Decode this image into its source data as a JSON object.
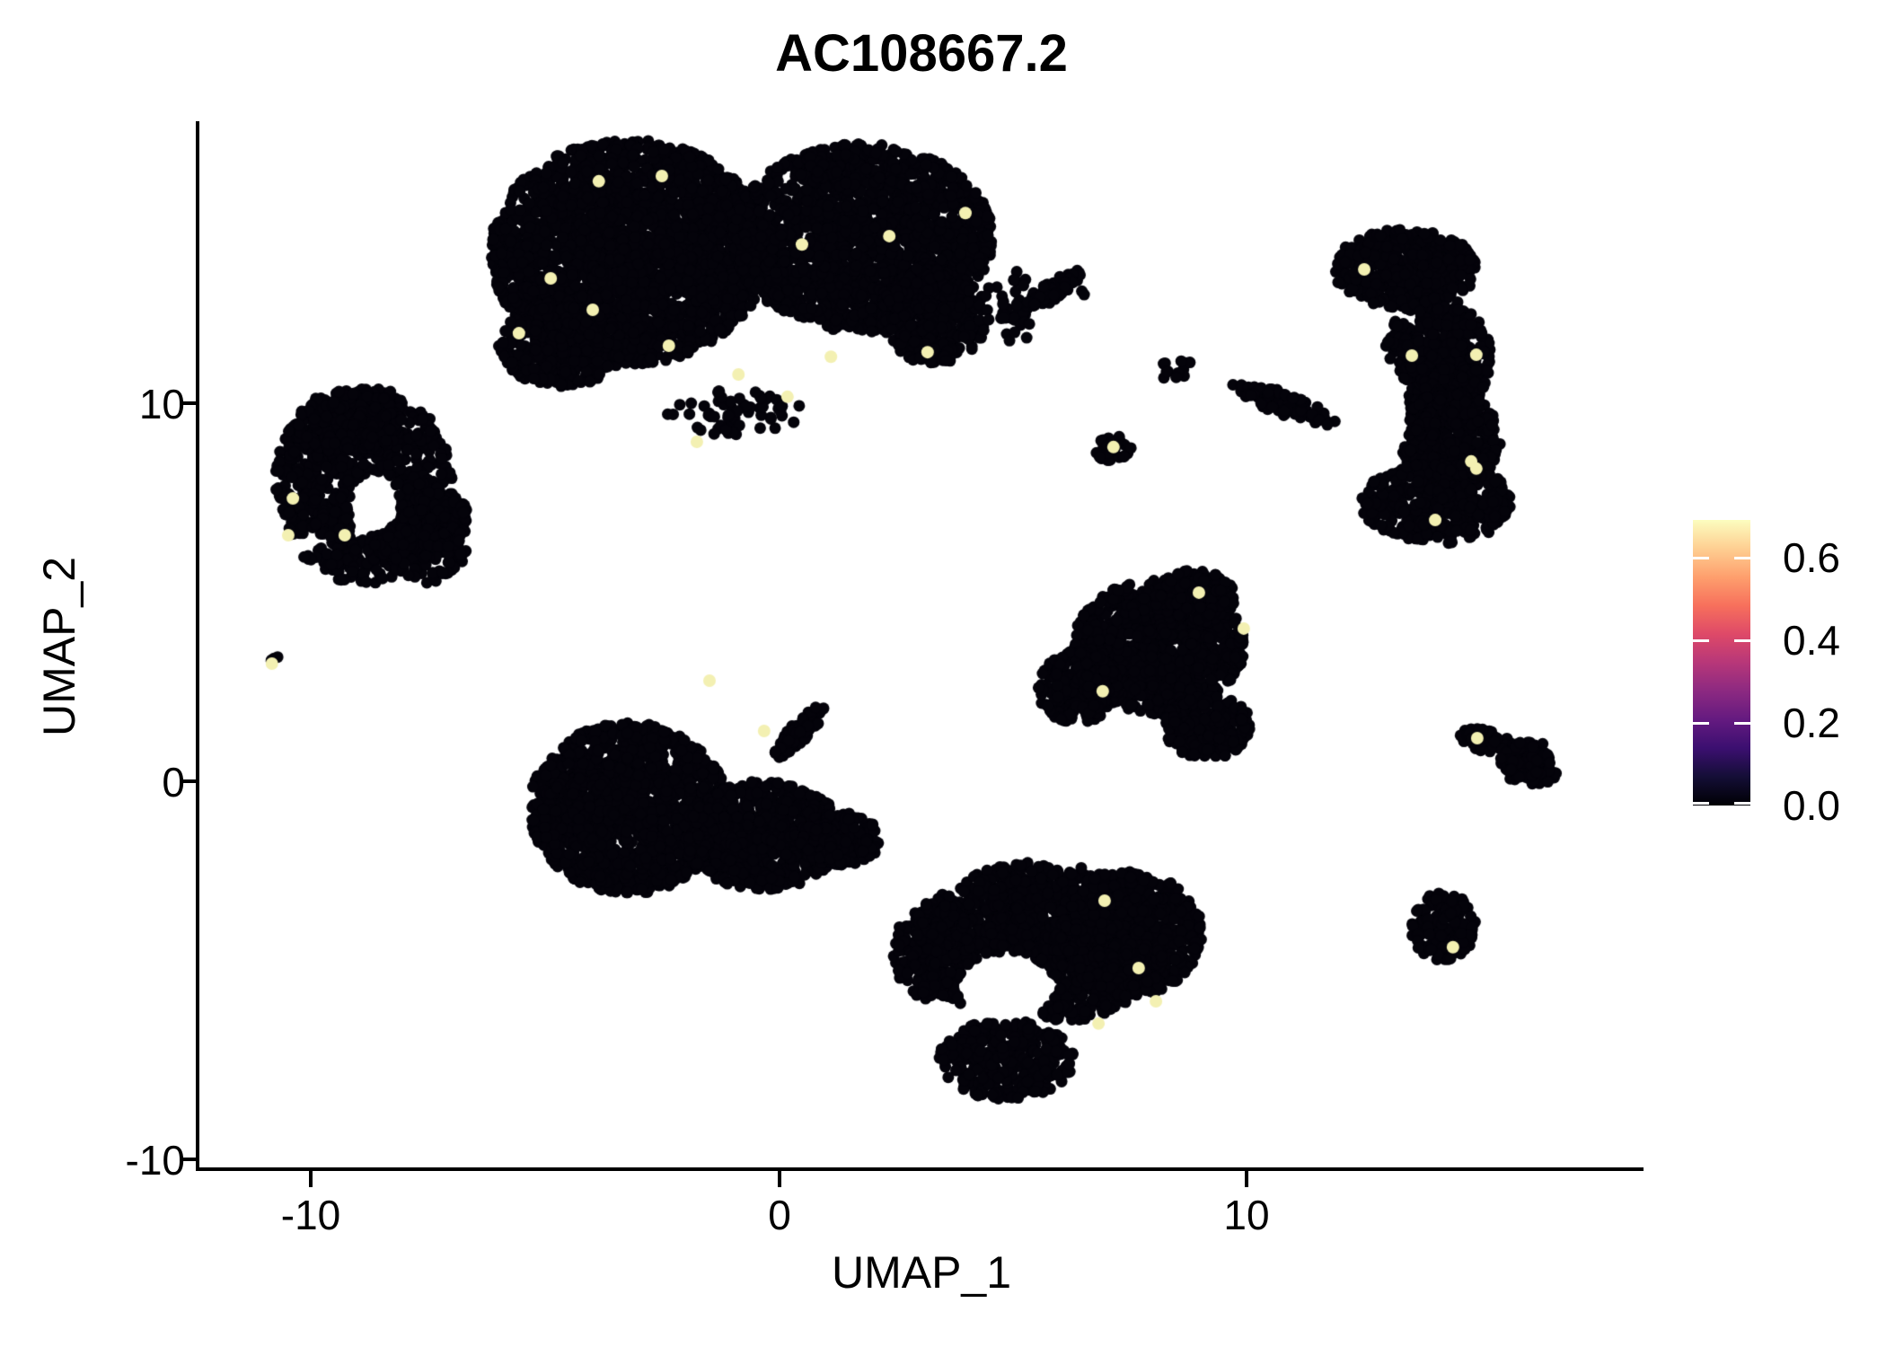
{
  "title": "AC108667.2",
  "axes": {
    "xlabel": "UMAP_1",
    "ylabel": "UMAP_2",
    "x_ticks": [
      "-10",
      "0",
      "10"
    ],
    "y_ticks": [
      "10",
      "0",
      "-10"
    ]
  },
  "legend": {
    "labels": [
      "0.6",
      "0.4",
      "0.2",
      "0.0"
    ]
  },
  "chart_data": {
    "type": "scatter",
    "title": "AC108667.2",
    "xlabel": "UMAP_1",
    "ylabel": "UMAP_2",
    "x_tick_values": [
      -10,
      0,
      10
    ],
    "y_tick_values": [
      -10,
      0,
      10
    ],
    "xlim": [
      -12.4,
      18.5
    ],
    "ylim": [
      -10.2,
      17.4
    ],
    "grid": false,
    "legend_position": "right",
    "colorbar": {
      "ticks": [
        0.0,
        0.2,
        0.4,
        0.6
      ],
      "vmin": 0.0,
      "vmax": 0.69,
      "colormap": "magma",
      "stops": [
        "#000004",
        "#140e36",
        "#3b0f70",
        "#641a80",
        "#8c2981",
        "#b73779",
        "#de4968",
        "#f7705c",
        "#fe9f6d",
        "#fecf92",
        "#fcfdbf"
      ]
    },
    "point_color": "#04030a",
    "highlight_color": "#f3f0b2",
    "highlight_value_approx": 0.65,
    "point_radius_px": 6.5,
    "clusters": [
      {
        "name": "top-main",
        "blobs": [
          {
            "cx": -3.23,
            "cy": 14.0,
            "rx": 2.98,
            "ry": 2.97,
            "n": 2600
          },
          {
            "cx": 1.77,
            "cy": 14.37,
            "rx": 2.79,
            "ry": 2.49,
            "n": 1800
          },
          {
            "cx": -4.67,
            "cy": 11.52,
            "rx": 1.35,
            "ry": 1.07,
            "n": 350
          },
          {
            "cx": 3.31,
            "cy": 12.35,
            "rx": 1.15,
            "ry": 1.31,
            "n": 400
          },
          {
            "cx": 5.58,
            "cy": 12.8,
            "rx": 1.15,
            "ry": 0.24,
            "n": 90,
            "rot": 0.64
          },
          {
            "cx": 4.94,
            "cy": 12.59,
            "rx": 0.55,
            "ry": 1.2,
            "n": 25
          },
          {
            "cx": -0.92,
            "cy": 9.74,
            "rx": 1.5,
            "ry": 0.6,
            "n": 60
          },
          {
            "cx": 6.52,
            "cy": 12.9,
            "rx": 0.08,
            "ry": 0.08,
            "n": 2
          }
        ],
        "holes": []
      },
      {
        "name": "left-ring",
        "blobs": [
          {
            "cx": -8.9,
            "cy": 7.84,
            "rx": 1.92,
            "ry": 2.61,
            "n": 900
          },
          {
            "cx": -7.65,
            "cy": 6.65,
            "rx": 1.06,
            "ry": 1.43,
            "n": 300
          },
          {
            "cx": -9.19,
            "cy": 9.5,
            "rx": 1.15,
            "ry": 0.83,
            "n": 250
          }
        ],
        "holes": [
          {
            "cx": -8.67,
            "cy": 7.36,
            "rx": 0.54,
            "ry": 0.83
          }
        ]
      },
      {
        "name": "left-tiny-pair",
        "blobs": [
          {
            "cx": -10.75,
            "cy": 3.2,
            "rx": 0.15,
            "ry": 0.12,
            "n": 4
          }
        ],
        "holes": []
      },
      {
        "name": "bottom-left",
        "blobs": [
          {
            "cx": -3.23,
            "cy": -0.71,
            "rx": 2.12,
            "ry": 2.26,
            "n": 1500
          },
          {
            "cx": -0.35,
            "cy": -1.43,
            "rx": 1.73,
            "ry": 1.43,
            "n": 700
          },
          {
            "cx": 1.29,
            "cy": -1.54,
            "rx": 0.87,
            "ry": 0.71,
            "n": 200
          },
          {
            "cx": 0.42,
            "cy": 1.3,
            "rx": 0.85,
            "ry": 0.22,
            "n": 100,
            "rot": 0.93
          }
        ],
        "holes": []
      },
      {
        "name": "center-triangle",
        "blobs": [
          {
            "cx": 8.12,
            "cy": 3.56,
            "rx": 1.83,
            "ry": 1.78,
            "n": 900
          },
          {
            "cx": 8.88,
            "cy": 4.87,
            "rx": 0.87,
            "ry": 0.71,
            "n": 200
          },
          {
            "cx": 9.17,
            "cy": 1.43,
            "rx": 0.96,
            "ry": 0.83,
            "n": 250
          },
          {
            "cx": 6.38,
            "cy": 2.49,
            "rx": 0.87,
            "ry": 0.95,
            "n": 220
          }
        ],
        "holes": []
      },
      {
        "name": "bottom-center",
        "blobs": [
          {
            "cx": 5.62,
            "cy": -4.28,
            "rx": 2.69,
            "ry": 2.14,
            "n": 1300
          },
          {
            "cx": 7.44,
            "cy": -4.04,
            "rx": 1.63,
            "ry": 1.66,
            "n": 700
          },
          {
            "cx": 4.85,
            "cy": -7.36,
            "rx": 1.44,
            "ry": 1.07,
            "n": 350
          },
          {
            "cx": 3.31,
            "cy": -4.51,
            "rx": 0.87,
            "ry": 1.31,
            "n": 250
          }
        ],
        "holes": [
          {
            "cx": 4.85,
            "cy": -5.46,
            "rx": 1.06,
            "ry": 0.95
          }
        ]
      },
      {
        "name": "right-crescent",
        "blobs": [
          {
            "cx": 13.4,
            "cy": 13.54,
            "rx": 1.54,
            "ry": 1.07,
            "n": 500
          },
          {
            "cx": 14.08,
            "cy": 11.16,
            "rx": 1.15,
            "ry": 1.66,
            "n": 500
          },
          {
            "cx": 14.37,
            "cy": 9.03,
            "rx": 1.06,
            "ry": 1.31,
            "n": 400
          },
          {
            "cx": 14.08,
            "cy": 7.36,
            "rx": 1.63,
            "ry": 1.07,
            "n": 450
          }
        ],
        "holes": [
          {
            "cx": 12.63,
            "cy": 9.74,
            "rx": 0.87,
            "ry": 1.66
          }
        ]
      },
      {
        "name": "small-dots-mid",
        "blobs": [
          {
            "cx": 8.5,
            "cy": 10.88,
            "rx": 0.4,
            "ry": 0.3,
            "n": 12
          }
        ],
        "holes": []
      },
      {
        "name": "thin-line",
        "blobs": [
          {
            "cx": 10.81,
            "cy": 9.98,
            "rx": 1.25,
            "ry": 0.29,
            "n": 90,
            "rot": -0.42
          }
        ],
        "holes": []
      },
      {
        "name": "small-blob-mid",
        "blobs": [
          {
            "cx": 7.15,
            "cy": 8.79,
            "rx": 0.38,
            "ry": 0.36,
            "n": 35
          }
        ],
        "holes": []
      },
      {
        "name": "right-chevron",
        "blobs": [
          {
            "cx": 15.13,
            "cy": 1.07,
            "rx": 0.58,
            "ry": 0.29,
            "n": 80,
            "rot": -0.3
          },
          {
            "cx": 16.1,
            "cy": 0.48,
            "rx": 0.67,
            "ry": 0.59,
            "n": 150
          }
        ],
        "holes": [
          {
            "cx": 16.77,
            "cy": 0.59,
            "rx": 0.29,
            "ry": 0.36
          }
        ]
      },
      {
        "name": "right-round",
        "blobs": [
          {
            "cx": 14.21,
            "cy": -3.85,
            "rx": 0.73,
            "ry": 0.9,
            "n": 160
          }
        ],
        "holes": []
      }
    ],
    "highlight_points": [
      {
        "x": -3.87,
        "y": 15.87
      },
      {
        "x": -2.52,
        "y": 16.01
      },
      {
        "x": 0.48,
        "y": 14.2
      },
      {
        "x": 2.35,
        "y": 14.42
      },
      {
        "x": -4.9,
        "y": 13.3
      },
      {
        "x": -5.58,
        "y": 11.85
      },
      {
        "x": -4.0,
        "y": 12.47
      },
      {
        "x": -2.37,
        "y": 11.52
      },
      {
        "x": 1.1,
        "y": 11.23
      },
      {
        "x": -0.88,
        "y": 10.76
      },
      {
        "x": 0.17,
        "y": 10.17
      },
      {
        "x": -1.77,
        "y": 8.98
      },
      {
        "x": 3.98,
        "y": 15.03
      },
      {
        "x": 3.17,
        "y": 11.35
      },
      {
        "x": -10.42,
        "y": 7.48
      },
      {
        "x": -10.52,
        "y": 6.51
      },
      {
        "x": -9.31,
        "y": 6.51
      },
      {
        "x": -10.87,
        "y": 3.11
      },
      {
        "x": -0.33,
        "y": 1.33
      },
      {
        "x": -1.5,
        "y": 2.66
      },
      {
        "x": 8.98,
        "y": 4.99
      },
      {
        "x": 6.92,
        "y": 2.38
      },
      {
        "x": 9.94,
        "y": 4.04
      },
      {
        "x": 6.96,
        "y": -3.16
      },
      {
        "x": 7.69,
        "y": -4.94
      },
      {
        "x": 8.06,
        "y": -5.82
      },
      {
        "x": 6.83,
        "y": -6.41
      },
      {
        "x": 12.52,
        "y": 13.54
      },
      {
        "x": 13.54,
        "y": 11.26
      },
      {
        "x": 14.92,
        "y": 11.28
      },
      {
        "x": 14.81,
        "y": 8.46
      },
      {
        "x": 14.92,
        "y": 8.27
      },
      {
        "x": 14.04,
        "y": 6.91
      },
      {
        "x": 7.15,
        "y": 8.84
      },
      {
        "x": 14.94,
        "y": 1.14
      },
      {
        "x": 14.42,
        "y": -4.39
      }
    ]
  }
}
